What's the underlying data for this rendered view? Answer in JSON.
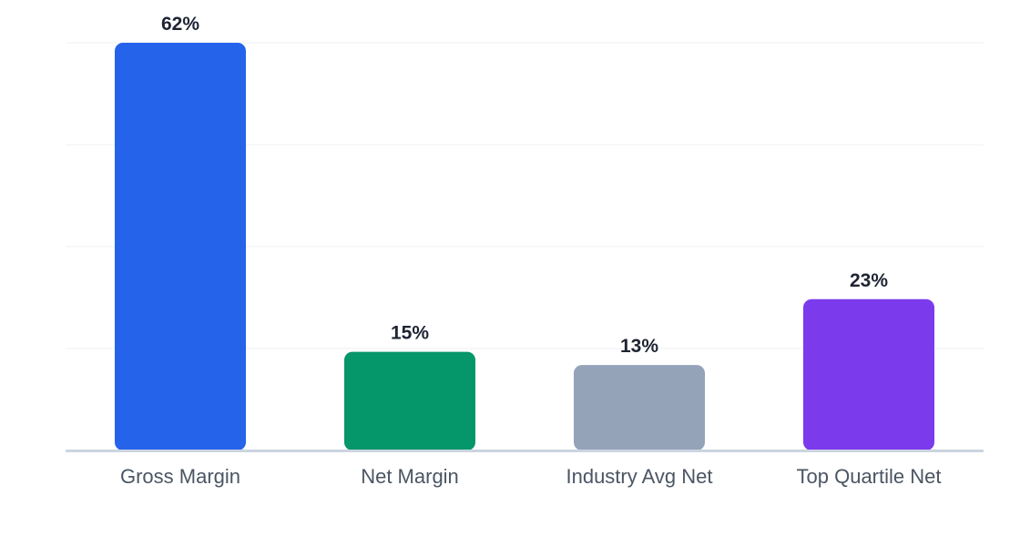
{
  "chart_data": {
    "type": "bar",
    "categories": [
      "Gross Margin",
      "Net Margin",
      "Industry Avg Net",
      "Top Quartile Net"
    ],
    "values": [
      62,
      15,
      13,
      23
    ],
    "value_labels": [
      "62%",
      "15%",
      "13%",
      "23%"
    ],
    "colors": [
      "#2563eb",
      "#059669",
      "#94a3b8",
      "#7c3aed"
    ],
    "title": "",
    "xlabel": "",
    "ylabel": "",
    "ylim": [
      0,
      62
    ],
    "grid": true,
    "legend": "none"
  },
  "style": {
    "grid_color": "#edf0f4",
    "axis_color": "#cbd5e1",
    "value_label_color": "#1f2433",
    "category_label_color": "#4b5563"
  }
}
